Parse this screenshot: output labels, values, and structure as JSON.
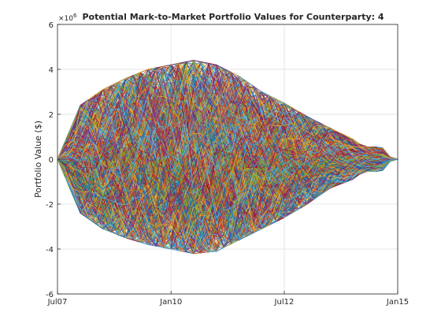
{
  "chart_data": {
    "type": "line",
    "title": "Potential Mark-to-Market Portfolio Values for Counterparty: 4",
    "xlabel": "",
    "ylabel": "Portfolio Value ($)",
    "y_exponent_label": "×10",
    "y_exponent": "6",
    "xlim": [
      "2007-07-01",
      "2015-01-01"
    ],
    "ylim": [
      -6,
      6
    ],
    "y_units_multiplier": 1000000,
    "x_ticks": [
      {
        "label": "Jul07",
        "date": "2007-07-01"
      },
      {
        "label": "Jan10",
        "date": "2010-01-01"
      },
      {
        "label": "Jul12",
        "date": "2012-07-01"
      },
      {
        "label": "Jan15",
        "date": "2015-01-01"
      }
    ],
    "y_ticks": [
      -6,
      -4,
      -2,
      0,
      2,
      4,
      6
    ],
    "y_tick_labels": [
      "-6",
      "-4",
      "-2",
      "0",
      "2",
      "4",
      "6"
    ],
    "grid": true,
    "legend": "none",
    "num_simulated_paths": 1000,
    "simulation_dates": [
      "2007-07-01",
      "2007-09-01",
      "2007-11-01",
      "2008-01-01",
      "2008-03-01",
      "2008-05-01",
      "2008-07-01",
      "2008-09-01",
      "2008-11-01",
      "2009-01-01",
      "2009-03-01",
      "2009-05-01",
      "2009-07-01",
      "2009-09-01",
      "2009-11-01",
      "2010-01-01",
      "2010-03-01",
      "2010-05-01",
      "2010-07-01",
      "2010-09-01",
      "2010-11-01",
      "2011-01-01",
      "2011-03-01",
      "2011-05-01",
      "2011-07-01",
      "2011-09-01",
      "2011-11-01",
      "2012-01-01",
      "2012-03-01",
      "2012-05-01",
      "2012-07-01",
      "2012-09-01",
      "2012-11-01",
      "2013-01-01",
      "2013-03-01",
      "2013-05-01",
      "2013-07-01",
      "2013-09-01",
      "2013-11-01",
      "2014-01-01",
      "2014-03-01",
      "2014-05-01",
      "2014-07-01",
      "2014-09-01",
      "2014-11-01",
      "2015-01-01"
    ],
    "envelope_date": [
      "2007-07-01",
      "2008-01-01",
      "2008-07-01",
      "2009-01-01",
      "2009-07-01",
      "2010-01-01",
      "2010-07-01",
      "2011-01-01",
      "2011-07-01",
      "2012-01-01",
      "2012-07-01",
      "2013-01-01",
      "2013-07-01",
      "2014-01-01",
      "2014-04-01",
      "2014-07-01",
      "2014-09-01",
      "2014-11-01",
      "2015-01-01"
    ],
    "envelope_upper": [
      0,
      2.4,
      3.1,
      3.6,
      4.0,
      4.2,
      4.4,
      4.2,
      3.7,
      3.0,
      2.5,
      1.9,
      1.4,
      0.9,
      0.55,
      0.55,
      0.5,
      0.1,
      0
    ],
    "envelope_lower": [
      0,
      -2.4,
      -3.1,
      -3.5,
      -3.8,
      -4.0,
      -4.2,
      -4.1,
      -3.6,
      -3.1,
      -2.6,
      -2.0,
      -1.3,
      -0.9,
      -0.55,
      -0.55,
      -0.5,
      -0.1,
      0
    ],
    "line_colors": [
      "#0072BD",
      "#D95319",
      "#EDB120",
      "#7E2F8E",
      "#77AC30",
      "#4DBEEE",
      "#A2142F"
    ]
  }
}
